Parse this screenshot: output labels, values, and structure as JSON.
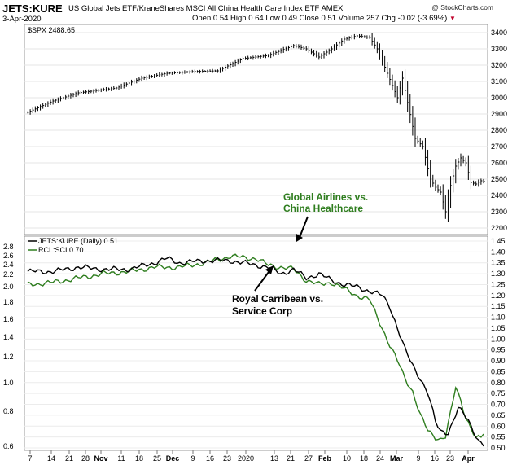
{
  "header": {
    "symbol": "JETS:KURE",
    "description": "US Global Jets ETF/KraneShares MSCI All China Health Care Index ETF  AMEX",
    "date": "3-Apr-2020",
    "credit": "@ StockCharts.com",
    "open_label": "Open",
    "open": "0.54",
    "high_label": "High",
    "high": "0.64",
    "low_label": "Low",
    "low": "0.49",
    "close_label": "Close",
    "close": "0.51",
    "volume_label": "Volume",
    "volume": "257",
    "chg_label": "Chg",
    "chg": "-0.02 (-3.69%)",
    "down_arrow": "▼"
  },
  "annotations": {
    "airlines_line1": "Global Airlines vs.",
    "airlines_line2": "China Healthcare",
    "cruise_line1": "Royal Carribean vs.",
    "cruise_line2": "Service Corp"
  },
  "colors": {
    "spx": "#000000",
    "jets_kure": "#000000",
    "rcl_sci": "#2e7d1e",
    "arrow": "#000000",
    "annotation_airlines": "#2e7d1e"
  },
  "chart_data": [
    {
      "type": "ohlc",
      "label": "$SPX 2488.65",
      "ylim": [
        2180,
        3420
      ],
      "yticks": [
        2200,
        2300,
        2400,
        2500,
        2600,
        2700,
        2800,
        2900,
        3000,
        3100,
        3200,
        3300,
        3400
      ],
      "grid": true,
      "anchors": [
        [
          0,
          2910
        ],
        [
          10,
          2980
        ],
        [
          20,
          3030
        ],
        [
          35,
          3060
        ],
        [
          45,
          3120
        ],
        [
          55,
          3150
        ],
        [
          65,
          3160
        ],
        [
          75,
          3165
        ],
        [
          85,
          3240
        ],
        [
          95,
          3260
        ],
        [
          105,
          3320
        ],
        [
          110,
          3300
        ],
        [
          115,
          3250
        ],
        [
          120,
          3300
        ],
        [
          125,
          3360
        ],
        [
          130,
          3380
        ],
        [
          135,
          3370
        ],
        [
          138,
          3300
        ],
        [
          142,
          3150
        ],
        [
          146,
          3000
        ],
        [
          148,
          3120
        ],
        [
          150,
          2970
        ],
        [
          153,
          2750
        ],
        [
          156,
          2700
        ],
        [
          159,
          2500
        ],
        [
          161,
          2450
        ],
        [
          163,
          2420
        ],
        [
          165,
          2300
        ],
        [
          167,
          2460
        ],
        [
          169,
          2580
        ],
        [
          171,
          2630
        ],
        [
          173,
          2600
        ],
        [
          175,
          2480
        ],
        [
          177,
          2470
        ],
        [
          179,
          2490
        ]
      ]
    },
    {
      "type": "line",
      "label": "JETS:KURE (Daily) 0.51",
      "left_axis_ticks": [
        "0.6",
        "0.8",
        "1.0",
        "1.2",
        "1.4",
        "1.6",
        "1.8",
        "2.0",
        "2.2",
        "2.4",
        "2.6",
        "2.8"
      ],
      "right_axis_ticks": [
        "0.50",
        "0.55",
        "0.60",
        "0.65",
        "0.70",
        "0.75",
        "0.80",
        "0.85",
        "0.90",
        "0.95",
        "1.00",
        "1.05",
        "1.10",
        "1.15",
        "1.20",
        "1.25",
        "1.30",
        "1.35",
        "1.40",
        "1.45"
      ],
      "ylim": [
        0.5,
        1.45
      ],
      "x_tick_labels": [
        "7",
        "14",
        "21",
        "28",
        "Nov",
        "11",
        "18",
        "25",
        "Dec",
        "9",
        "16",
        "23",
        "2020",
        "13",
        "21",
        "27",
        "Feb",
        "10",
        "18",
        "24",
        "Mar",
        "9",
        "16",
        "23",
        "Apr"
      ],
      "series": [
        {
          "name": "JETS:KURE",
          "points": [
            [
              0,
              1.31
            ],
            [
              10,
              1.31
            ],
            [
              20,
              1.33
            ],
            [
              30,
              1.32
            ],
            [
              40,
              1.32
            ],
            [
              50,
              1.35
            ],
            [
              55,
              1.37
            ],
            [
              60,
              1.35
            ],
            [
              70,
              1.36
            ],
            [
              80,
              1.36
            ],
            [
              90,
              1.34
            ],
            [
              95,
              1.33
            ],
            [
              100,
              1.3
            ],
            [
              105,
              1.32
            ],
            [
              110,
              1.28
            ],
            [
              115,
              1.3
            ],
            [
              120,
              1.27
            ],
            [
              125,
              1.25
            ],
            [
              130,
              1.24
            ],
            [
              135,
              1.22
            ],
            [
              140,
              1.2
            ],
            [
              143,
              1.15
            ],
            [
              146,
              1.05
            ],
            [
              149,
              0.95
            ],
            [
              152,
              0.88
            ],
            [
              155,
              0.82
            ],
            [
              158,
              0.75
            ],
            [
              161,
              0.62
            ],
            [
              163,
              0.58
            ],
            [
              166,
              0.57
            ],
            [
              168,
              0.62
            ],
            [
              170,
              0.68
            ],
            [
              172,
              0.66
            ],
            [
              174,
              0.63
            ],
            [
              176,
              0.58
            ],
            [
              178,
              0.53
            ],
            [
              180,
              0.51
            ]
          ]
        },
        {
          "name": "RCL:SCI 0.70",
          "points": [
            [
              0,
              1.25
            ],
            [
              10,
              1.26
            ],
            [
              20,
              1.28
            ],
            [
              30,
              1.3
            ],
            [
              40,
              1.31
            ],
            [
              50,
              1.33
            ],
            [
              60,
              1.33
            ],
            [
              70,
              1.35
            ],
            [
              80,
              1.38
            ],
            [
              90,
              1.37
            ],
            [
              95,
              1.34
            ],
            [
              100,
              1.33
            ],
            [
              105,
              1.32
            ],
            [
              110,
              1.27
            ],
            [
              115,
              1.25
            ],
            [
              120,
              1.26
            ],
            [
              125,
              1.23
            ],
            [
              130,
              1.2
            ],
            [
              135,
              1.18
            ],
            [
              140,
              1.05
            ],
            [
              143,
              0.97
            ],
            [
              146,
              0.9
            ],
            [
              149,
              0.82
            ],
            [
              152,
              0.76
            ],
            [
              155,
              0.65
            ],
            [
              158,
              0.58
            ],
            [
              161,
              0.55
            ],
            [
              163,
              0.54
            ],
            [
              165,
              0.55
            ],
            [
              167,
              0.66
            ],
            [
              169,
              0.78
            ],
            [
              171,
              0.72
            ],
            [
              173,
              0.64
            ],
            [
              175,
              0.59
            ],
            [
              177,
              0.54
            ],
            [
              179,
              0.55
            ],
            [
              180,
              0.57
            ]
          ]
        }
      ]
    }
  ]
}
